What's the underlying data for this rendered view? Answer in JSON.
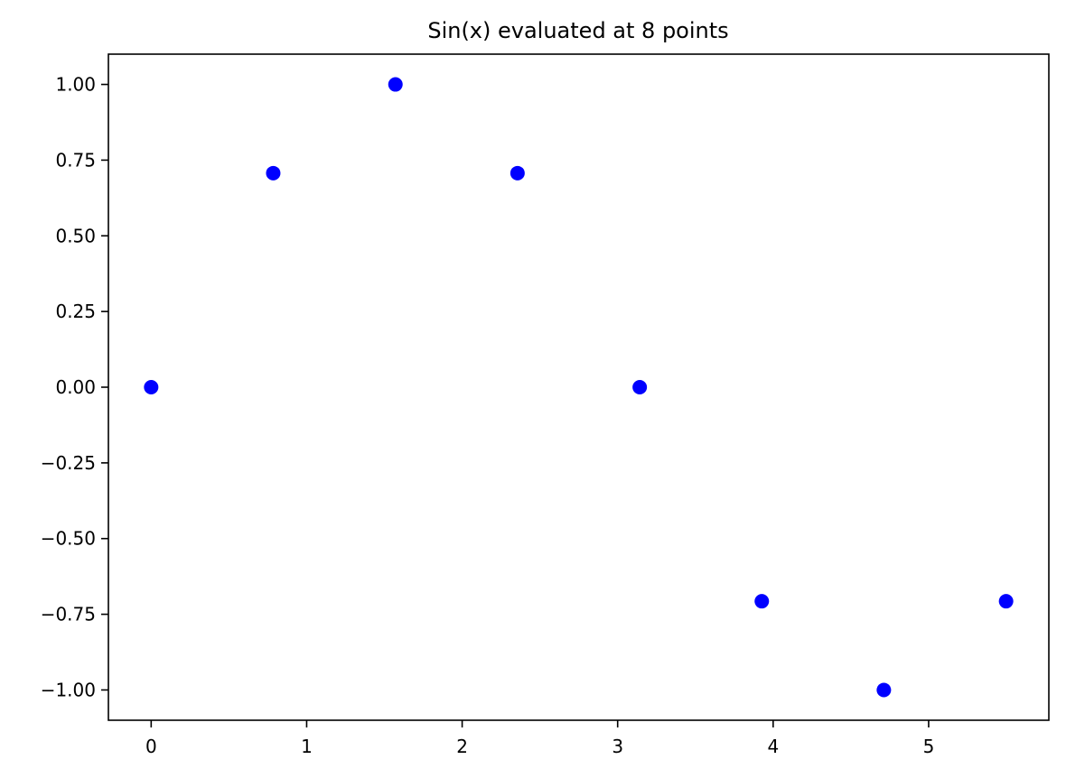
{
  "chart_data": {
    "type": "scatter",
    "title": "Sin(x) evaluated at 8 points",
    "xlabel": "",
    "ylabel": "",
    "series": [
      {
        "color": "#0000ff",
        "x": [
          0,
          0.785,
          1.571,
          2.356,
          3.142,
          3.927,
          4.712,
          5.498
        ],
        "y": [
          0,
          0.707,
          1.0,
          0.707,
          0,
          -0.707,
          -1.0,
          -0.707
        ]
      }
    ],
    "xlim": [
      -0.275,
      5.773
    ],
    "ylim": [
      -1.1,
      1.1
    ],
    "xticks": [
      0,
      1,
      2,
      3,
      4,
      5
    ],
    "xtick_labels": [
      "0",
      "1",
      "2",
      "3",
      "4",
      "5"
    ],
    "yticks": [
      1.0,
      0.75,
      0.5,
      0.25,
      0,
      -0.25,
      -0.5,
      -0.75,
      -1.0
    ],
    "ytick_labels": [
      "1.00",
      "0.75",
      "0.50",
      "0.25",
      "0.00",
      "−0.25",
      "−0.50",
      "−0.75",
      "−1.00"
    ],
    "grid": false,
    "legend": "none"
  }
}
